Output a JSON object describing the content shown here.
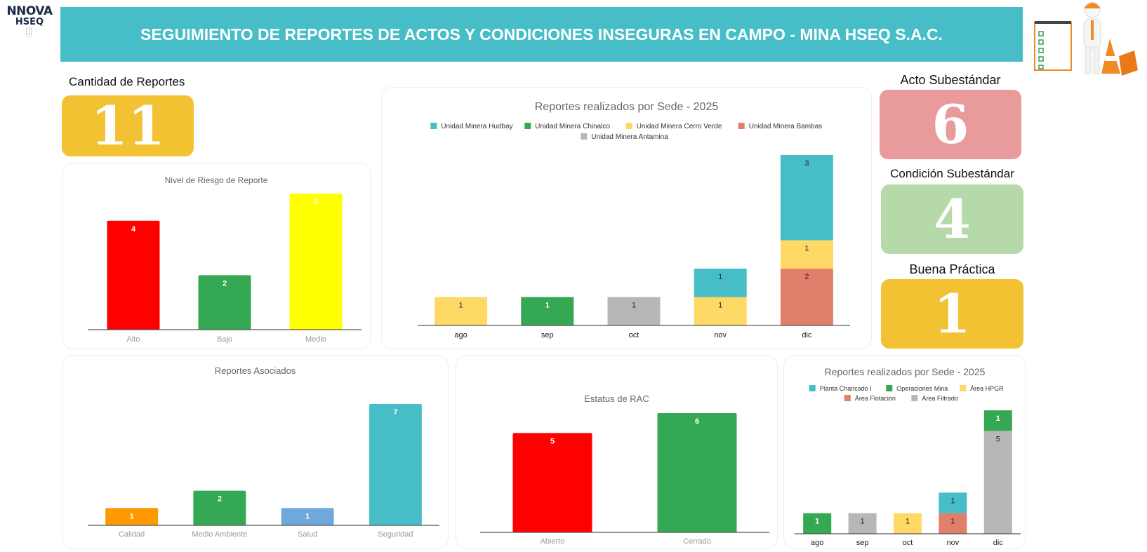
{
  "logo": {
    "line1": "NNOVA",
    "line2": "HSEQ"
  },
  "header": {
    "title": "SEGUIMIENTO DE REPORTES DE ACTOS Y CONDICIONES INSEGURAS EN CAMPO - MINA HSEQ S.A.C."
  },
  "illustration": {
    "icon": "safety-worker-checklist-cones-icon"
  },
  "kpis": {
    "total": {
      "label": "Cantidad de Reportes",
      "value": "11",
      "color": "#f2c232"
    },
    "acto": {
      "label": "Acto Subestándar",
      "value": "6",
      "color": "#e99a9a"
    },
    "condicion": {
      "label": "Condición Subestándar",
      "value": "4",
      "color": "#b5d9a8"
    },
    "buena": {
      "label": "Buena Práctica",
      "value": "1",
      "color": "#f2c232"
    }
  },
  "chart_data": [
    {
      "id": "riesgo",
      "type": "bar",
      "title": "Nivel de Riesgo de Reporte",
      "categories": [
        "Alto",
        "Bajo",
        "Medio"
      ],
      "values": [
        4,
        2,
        5
      ],
      "colors": [
        "#ff0000",
        "#34a853",
        "#ffff00"
      ],
      "grid": false
    },
    {
      "id": "sede",
      "type": "bar",
      "stacked": true,
      "title": "Reportes realizados por Sede - 2025",
      "legend": "top",
      "categories": [
        "ago",
        "sep",
        "oct",
        "nov",
        "dic"
      ],
      "series": [
        {
          "name": "Unidad Minera Hudbay",
          "color": "#47bec7",
          "values": [
            0,
            0,
            0,
            1,
            3
          ]
        },
        {
          "name": "Unidad Minera Chinalco",
          "color": "#34a853",
          "values": [
            0,
            1,
            0,
            0,
            0
          ]
        },
        {
          "name": "Unidad Minera Cerro Verde",
          "color": "#ffd966",
          "values": [
            1,
            0,
            0,
            1,
            1
          ]
        },
        {
          "name": "Unidad Minera Bambas",
          "color": "#e07f6b",
          "values": [
            0,
            0,
            0,
            0,
            2
          ]
        },
        {
          "name": "Unidad Minera Antamina",
          "color": "#b7b7b7",
          "values": [
            0,
            0,
            1,
            0,
            0
          ]
        }
      ]
    },
    {
      "id": "asociados",
      "type": "bar",
      "title": "Reportes Asociados",
      "categories": [
        "Calidad",
        "Medio Ambiente",
        "Salud",
        "Seguridad"
      ],
      "values": [
        1,
        2,
        1,
        7
      ],
      "colors": [
        "#ff9900",
        "#34a853",
        "#6fa8dc",
        "#47bec7"
      ],
      "grid": false
    },
    {
      "id": "rac",
      "type": "bar",
      "title": "Estatus de RAC",
      "categories": [
        "Abierto",
        "Cerrado"
      ],
      "values": [
        5,
        6
      ],
      "colors": [
        "#ff0000",
        "#34a853"
      ],
      "grid": false
    },
    {
      "id": "area",
      "type": "bar",
      "stacked": true,
      "title": "Reportes realizados por Sede - 2025",
      "legend": "top",
      "categories": [
        "ago",
        "sep",
        "oct",
        "nov",
        "dic"
      ],
      "series": [
        {
          "name": "Planta Chancado I",
          "color": "#47bec7",
          "values": [
            0,
            0,
            0,
            1,
            0
          ]
        },
        {
          "name": "Operaciones Mina",
          "color": "#34a853",
          "values": [
            1,
            0,
            0,
            0,
            1
          ]
        },
        {
          "name": "Área HPGR",
          "color": "#ffd966",
          "values": [
            0,
            0,
            1,
            0,
            0
          ]
        },
        {
          "name": "Área Flotación",
          "color": "#e07f6b",
          "values": [
            0,
            0,
            0,
            1,
            0
          ]
        },
        {
          "name": "Área Filtrado",
          "color": "#b7b7b7",
          "values": [
            0,
            1,
            0,
            0,
            5
          ]
        }
      ]
    }
  ]
}
